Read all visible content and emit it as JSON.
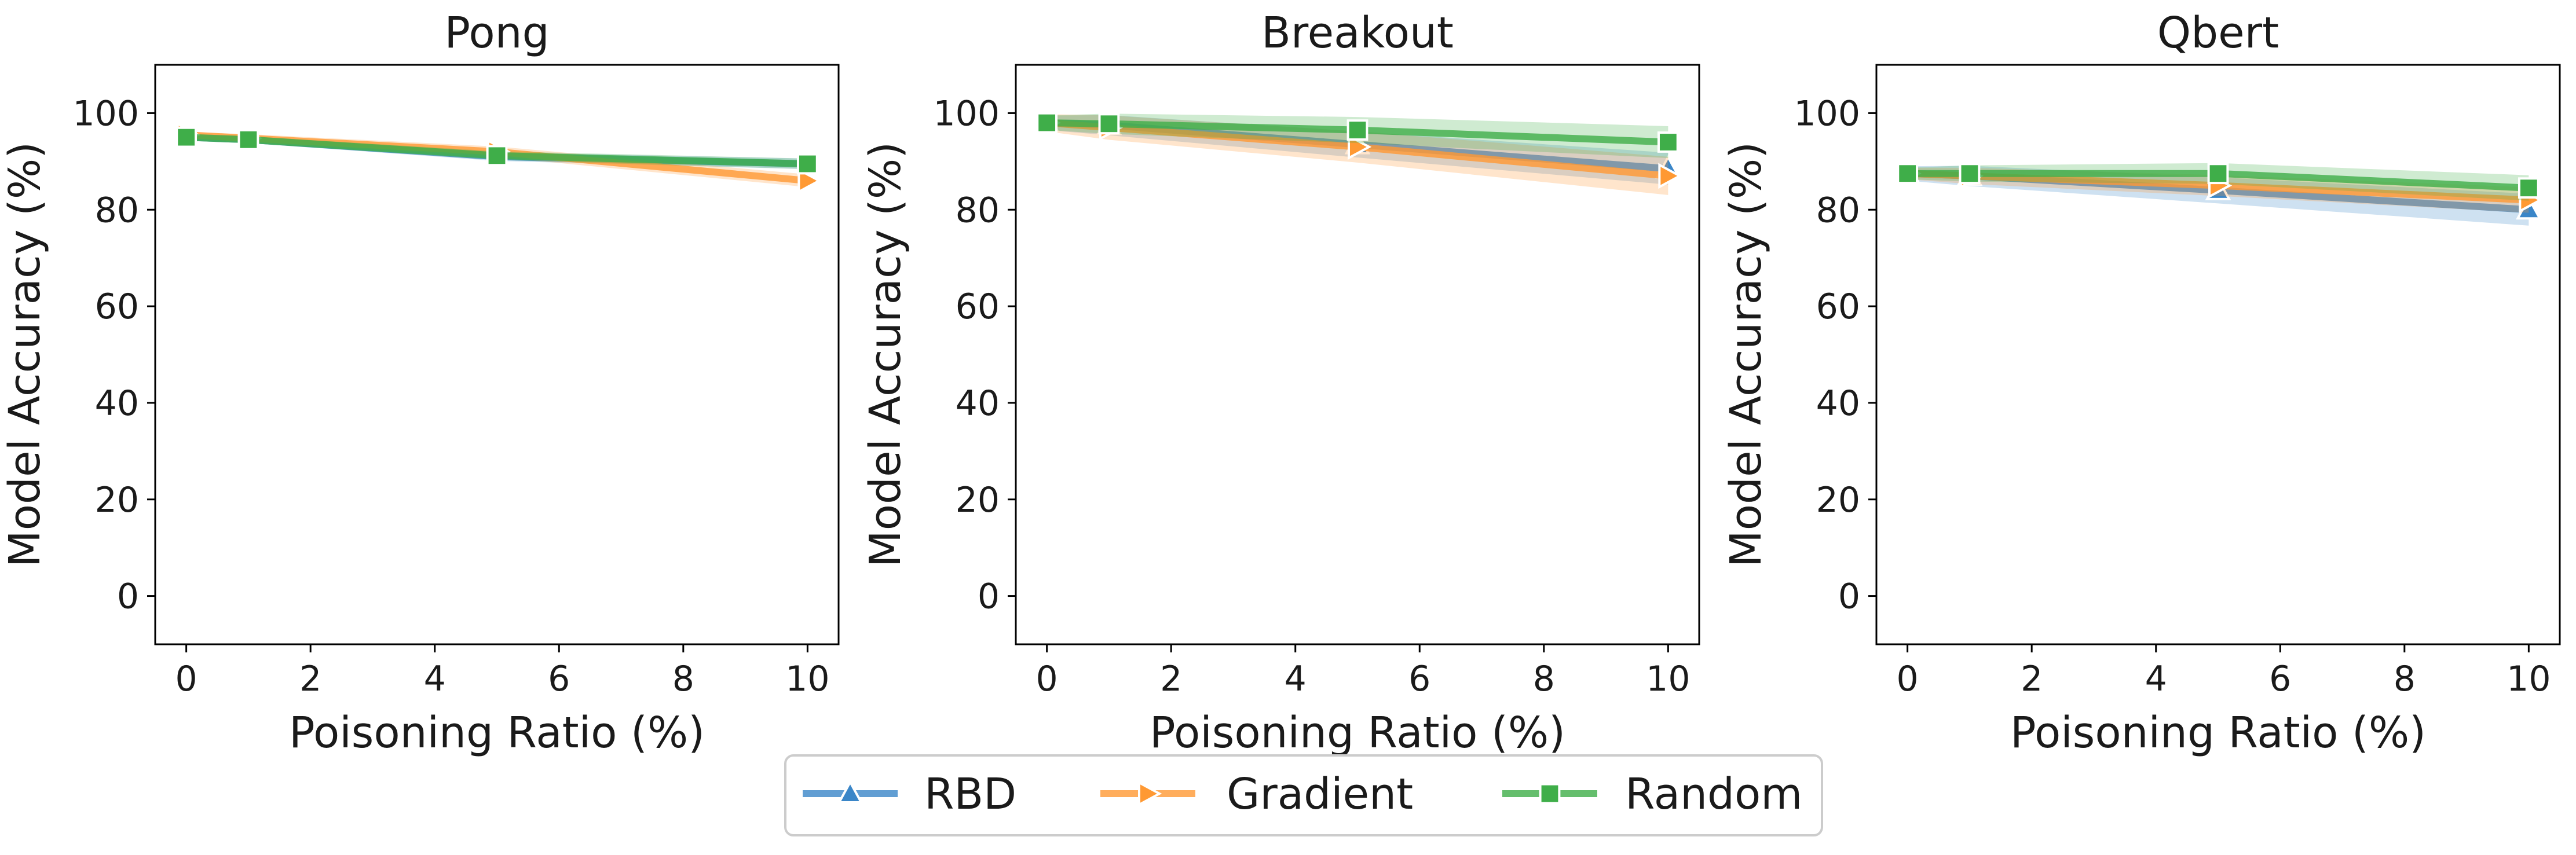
{
  "colors": {
    "RBD": "#3a86c8",
    "Gradient": "#ff9933",
    "Random": "#3fae49",
    "axis": "#000000",
    "text": "#1a1a1a"
  },
  "legend": {
    "placement": "bottom-center",
    "items": [
      {
        "label": "RBD",
        "marker": "triangle-up",
        "color_key": "RBD"
      },
      {
        "label": "Gradient",
        "marker": "triangle-right",
        "color_key": "Gradient"
      },
      {
        "label": "Random",
        "marker": "square",
        "color_key": "Random"
      }
    ]
  },
  "chart_data": [
    {
      "type": "line",
      "title": "Pong",
      "xlabel": "Poisoning Ratio (%)",
      "ylabel": "Model Accuracy (%)",
      "xlim": [
        -0.5,
        10.5
      ],
      "ylim": [
        -10,
        110
      ],
      "xticks": [
        0,
        2,
        4,
        6,
        8,
        10
      ],
      "yticks": [
        0,
        20,
        40,
        60,
        80,
        100
      ],
      "grid": false,
      "x": [
        0,
        1,
        5,
        10
      ],
      "series": [
        {
          "name": "RBD",
          "values": [
            95.0,
            94.5,
            91.0,
            89.5
          ],
          "band": 0.5
        },
        {
          "name": "Gradient",
          "values": [
            95.5,
            94.8,
            92.0,
            86.0
          ],
          "band": 0.6
        },
        {
          "name": "Random",
          "values": [
            95.0,
            94.5,
            91.2,
            89.5
          ],
          "band": 0.5
        }
      ]
    },
    {
      "type": "line",
      "title": "Breakout",
      "xlabel": "Poisoning Ratio (%)",
      "ylabel": "Model Accuracy (%)",
      "xlim": [
        -0.5,
        10.5
      ],
      "ylim": [
        -10,
        110
      ],
      "xticks": [
        0,
        2,
        4,
        6,
        8,
        10
      ],
      "yticks": [
        0,
        20,
        40,
        60,
        80,
        100
      ],
      "grid": false,
      "x": [
        0,
        1,
        5,
        10
      ],
      "series": [
        {
          "name": "RBD",
          "values": [
            98.0,
            97.5,
            93.5,
            88.5
          ],
          "band": 1.5
        },
        {
          "name": "Gradient",
          "values": [
            98.0,
            97.0,
            93.0,
            87.0
          ],
          "band": 1.8
        },
        {
          "name": "Random",
          "values": [
            98.0,
            97.8,
            96.5,
            94.0
          ],
          "band": 1.5
        }
      ]
    },
    {
      "type": "line",
      "title": "Qbert",
      "xlabel": "Poisoning Ratio (%)",
      "ylabel": "Model Accuracy (%)",
      "xlim": [
        -0.5,
        10.5
      ],
      "ylim": [
        -10,
        110
      ],
      "xticks": [
        0,
        2,
        4,
        6,
        8,
        10
      ],
      "yticks": [
        0,
        20,
        40,
        60,
        80,
        100
      ],
      "grid": false,
      "x": [
        0,
        1,
        5,
        10
      ],
      "series": [
        {
          "name": "RBD",
          "values": [
            87.5,
            87.0,
            84.0,
            80.0
          ],
          "band": 1.5
        },
        {
          "name": "Gradient",
          "values": [
            87.5,
            87.0,
            85.0,
            82.0
          ],
          "band": 1.2
        },
        {
          "name": "Random",
          "values": [
            87.5,
            87.5,
            87.5,
            84.5
          ],
          "band": 1.2
        }
      ]
    }
  ]
}
